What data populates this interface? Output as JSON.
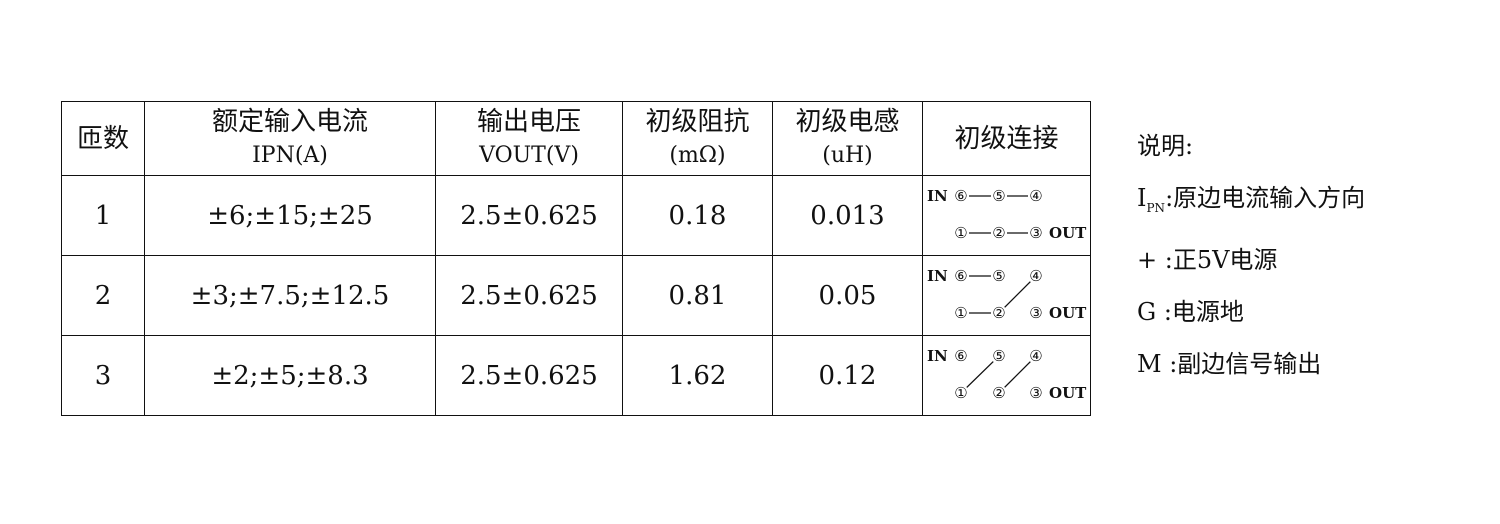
{
  "table": {
    "headers": [
      {
        "line1": "匝数",
        "line2": ""
      },
      {
        "line1": "额定输入电流",
        "line2": "IPN(A)"
      },
      {
        "line1": "输出电压",
        "line2": "VOUT(V)"
      },
      {
        "line1": "初级阻抗",
        "line2": "(mΩ)"
      },
      {
        "line1": "初级电感",
        "line2": "(uH)"
      },
      {
        "line1": "初级连接",
        "line2": ""
      }
    ],
    "rows": [
      {
        "turns": "1",
        "current": "±6;±15;±25",
        "vout": "2.5±0.625",
        "impedance": "0.18",
        "inductance": "0.013",
        "connections": [
          [
            "6",
            "5"
          ],
          [
            "5",
            "4"
          ],
          [
            "1",
            "2"
          ],
          [
            "2",
            "3"
          ]
        ]
      },
      {
        "turns": "2",
        "current": "±3;±7.5;±12.5",
        "vout": "2.5±0.625",
        "impedance": "0.81",
        "inductance": "0.05",
        "connections": [
          [
            "6",
            "5"
          ],
          [
            "1",
            "2"
          ],
          [
            "2",
            "4"
          ]
        ]
      },
      {
        "turns": "3",
        "current": "±2;±5;±8.3",
        "vout": "2.5±0.625",
        "impedance": "1.62",
        "inductance": "0.12",
        "connections": [
          [
            "1",
            "5"
          ],
          [
            "2",
            "4"
          ]
        ]
      }
    ],
    "diagram": {
      "in_label": "IN",
      "out_label": "OUT",
      "pins": {
        "6": "⑥",
        "5": "⑤",
        "4": "④",
        "1": "①",
        "2": "②",
        "3": "③"
      }
    }
  },
  "notes": {
    "title": "说明:",
    "items": [
      {
        "key": "I",
        "key_sub": "PN",
        "text": ":原边电流输入方向"
      },
      {
        "key": "+ ",
        "key_sub": "",
        "text": ":正5V电源"
      },
      {
        "key": "G ",
        "key_sub": "",
        "text": ":电源地"
      },
      {
        "key": "M ",
        "key_sub": "",
        "text": ":副边信号输出"
      }
    ]
  }
}
